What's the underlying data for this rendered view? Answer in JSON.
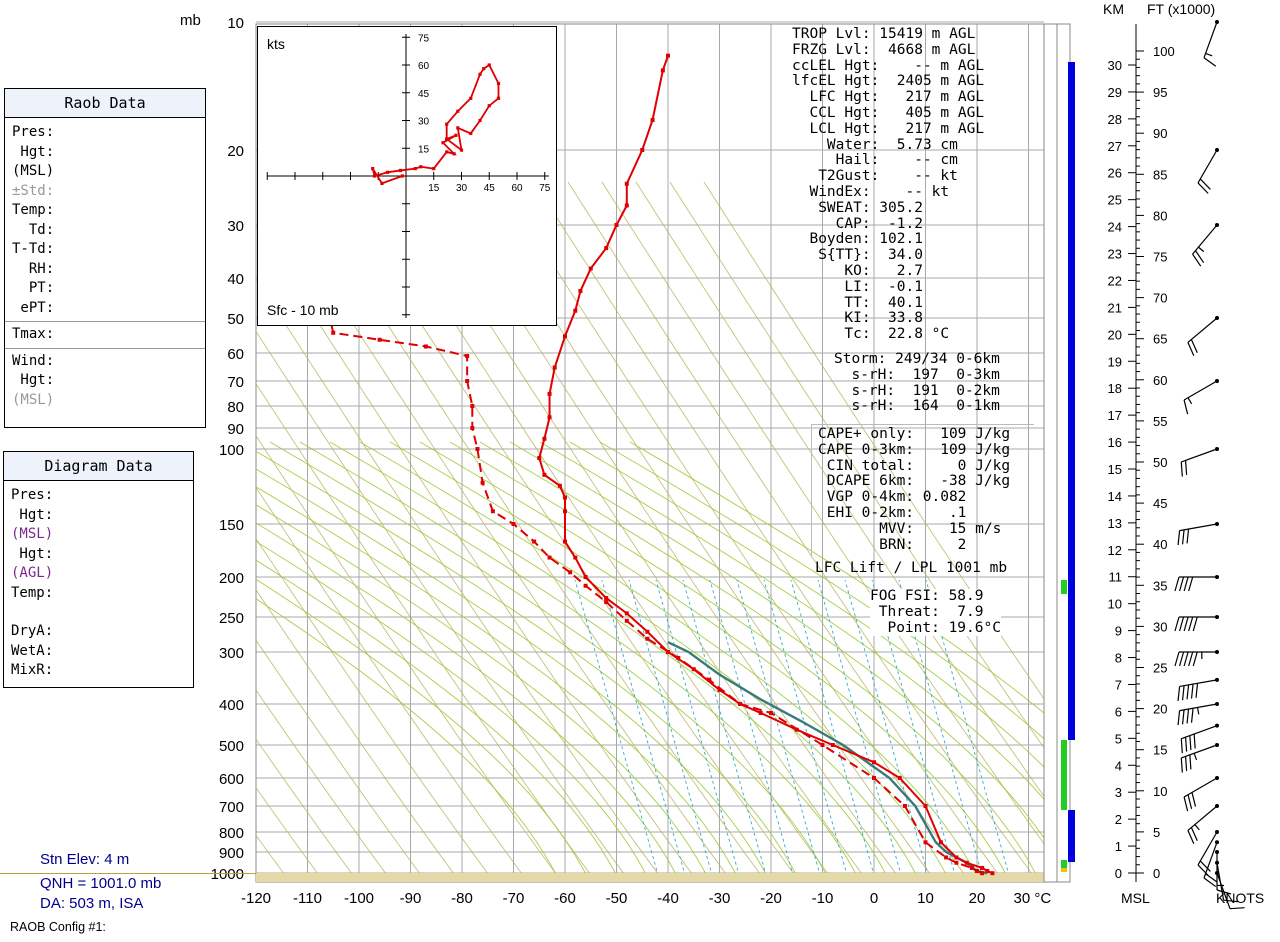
{
  "chart_data": {
    "type": "skew-t",
    "units": {
      "pressure": "mb",
      "temperature": "°C"
    },
    "pressure_ticks": [
      10,
      20,
      30,
      40,
      50,
      60,
      70,
      80,
      90,
      100,
      150,
      200,
      250,
      300,
      400,
      500,
      600,
      700,
      800,
      900,
      1000
    ],
    "temp_ticks": [
      -120,
      -110,
      -100,
      -90,
      -80,
      -70,
      -60,
      -50,
      -40,
      -30,
      -20,
      -10,
      0,
      10,
      20,
      30
    ],
    "temp_unit_label": "30 °C",
    "mb_label": "mb",
    "temperature_profile": [
      [
        23,
        1001
      ],
      [
        22,
        990
      ],
      [
        21,
        975
      ],
      [
        18,
        950
      ],
      [
        16,
        925
      ],
      [
        13,
        850
      ],
      [
        10,
        700
      ],
      [
        5,
        600
      ],
      [
        0,
        550
      ],
      [
        -8,
        500
      ],
      [
        -15,
        460
      ],
      [
        -22,
        420
      ],
      [
        -26,
        400
      ],
      [
        -30,
        370
      ],
      [
        -35,
        330
      ],
      [
        -40,
        300
      ],
      [
        -44,
        270
      ],
      [
        -48,
        245
      ],
      [
        -52,
        225
      ],
      [
        -56,
        200
      ],
      [
        -58,
        180
      ],
      [
        -60,
        165
      ],
      [
        -60,
        140
      ],
      [
        -60,
        130
      ],
      [
        -61,
        122
      ],
      [
        -64,
        115
      ],
      [
        -65,
        105
      ],
      [
        -64,
        95
      ],
      [
        -63,
        85
      ],
      [
        -63,
        75
      ],
      [
        -62,
        65
      ],
      [
        -60,
        55
      ],
      [
        -58,
        48
      ],
      [
        -57,
        43
      ],
      [
        -55,
        38
      ],
      [
        -52,
        34
      ],
      [
        -50,
        30
      ],
      [
        -48,
        27
      ],
      [
        -48,
        24
      ],
      [
        -45,
        20
      ],
      [
        -43,
        17
      ],
      [
        -41,
        13
      ],
      [
        -40,
        12
      ]
    ],
    "dewpoint_profile": [
      [
        21,
        1001
      ],
      [
        20,
        990
      ],
      [
        19,
        975
      ],
      [
        16,
        950
      ],
      [
        14,
        925
      ],
      [
        10,
        850
      ],
      [
        6,
        700
      ],
      [
        0,
        600
      ],
      [
        -10,
        500
      ],
      [
        -20,
        420
      ],
      [
        -26,
        400
      ],
      [
        -32,
        350
      ],
      [
        -38,
        310
      ],
      [
        -44,
        280
      ],
      [
        -48,
        255
      ],
      [
        -52,
        230
      ],
      [
        -56,
        210
      ],
      [
        -59,
        195
      ],
      [
        -63,
        180
      ],
      [
        -66,
        165
      ],
      [
        -70,
        150
      ],
      [
        -74,
        140
      ],
      [
        -76,
        120
      ],
      [
        -77,
        100
      ],
      [
        -78,
        90
      ],
      [
        -78,
        80
      ],
      [
        -79,
        70
      ],
      [
        -79,
        61
      ],
      [
        -87,
        58
      ],
      [
        -96,
        56
      ],
      [
        -105,
        54
      ],
      [
        -106,
        48
      ],
      [
        -110,
        45
      ]
    ],
    "parcel_profile": [
      [
        22,
        1001
      ],
      [
        20,
        990
      ],
      [
        18,
        950
      ],
      [
        14,
        900
      ],
      [
        12,
        850
      ],
      [
        8,
        700
      ],
      [
        3,
        600
      ],
      [
        -6,
        500
      ],
      [
        -14,
        440
      ],
      [
        -22,
        390
      ],
      [
        -30,
        340
      ],
      [
        -36,
        300
      ],
      [
        -40,
        285
      ]
    ],
    "hodograph": {
      "unit_label": "kts",
      "layer_label": "Sfc - 10 mb",
      "tick_labels": [
        "15",
        "30",
        "45",
        "60",
        "75"
      ],
      "points": [
        [
          -2,
          0
        ],
        [
          -13,
          -4
        ],
        [
          -18,
          4
        ],
        [
          -17,
          0
        ],
        [
          -10,
          2
        ],
        [
          -3,
          3
        ],
        [
          5,
          4
        ],
        [
          8,
          5
        ],
        [
          15,
          4
        ],
        [
          22,
          13
        ],
        [
          26,
          12
        ],
        [
          20,
          18
        ],
        [
          27,
          22
        ],
        [
          22,
          20
        ],
        [
          30,
          14
        ],
        [
          28,
          26
        ],
        [
          35,
          23
        ],
        [
          40,
          30
        ],
        [
          45,
          38
        ],
        [
          50,
          42
        ],
        [
          50,
          50
        ],
        [
          45,
          60
        ],
        [
          42,
          58
        ],
        [
          40,
          55
        ],
        [
          35,
          42
        ],
        [
          28,
          35
        ],
        [
          22,
          28
        ],
        [
          22,
          20
        ]
      ]
    },
    "wind_barbs_knots": [
      [
        1000,
        160,
        10
      ],
      [
        950,
        170,
        12
      ],
      [
        900,
        180,
        15
      ],
      [
        850,
        200,
        20
      ],
      [
        800,
        210,
        22
      ],
      [
        700,
        230,
        25
      ],
      [
        600,
        240,
        30
      ],
      [
        500,
        250,
        35
      ],
      [
        450,
        250,
        40
      ],
      [
        400,
        260,
        45
      ],
      [
        350,
        260,
        50
      ],
      [
        300,
        270,
        55
      ],
      [
        250,
        270,
        50
      ],
      [
        200,
        270,
        40
      ],
      [
        150,
        260,
        30
      ],
      [
        100,
        250,
        20
      ],
      [
        70,
        240,
        15
      ],
      [
        50,
        230,
        20
      ],
      [
        30,
        220,
        25
      ],
      [
        20,
        210,
        20
      ],
      [
        10,
        200,
        15
      ]
    ],
    "height_km_ticks": [
      "0",
      "1",
      "2",
      "3",
      "4",
      "5",
      "6",
      "7",
      "8",
      "9",
      "10",
      "11",
      "12",
      "13",
      "14",
      "15",
      "16",
      "17",
      "18",
      "19",
      "20",
      "21",
      "22",
      "23",
      "24",
      "25",
      "26",
      "27",
      "28",
      "29",
      "30"
    ],
    "height_ft_ticks": [
      "0",
      "5",
      "10",
      "15",
      "20",
      "25",
      "30",
      "35",
      "40",
      "45",
      "50",
      "55",
      "60",
      "65",
      "70",
      "75",
      "80",
      "85",
      "90",
      "95",
      "100"
    ],
    "km_label": "KM",
    "ft_label": "FT (x1000)",
    "msl_label": "MSL",
    "knots_label": "KNOTS"
  },
  "raob_panel": {
    "title": "Raob Data",
    "rows": [
      "Pres:",
      " Hgt:",
      "(MSL)",
      "±Std:",
      "Temp:",
      "  Td:",
      "T-Td:",
      "  RH:",
      "  PT:",
      " ePT:"
    ],
    "tmax": "Tmax:",
    "wind_rows": [
      "Wind:",
      " Hgt:",
      "(MSL)"
    ]
  },
  "diagram_panel": {
    "title": "Diagram Data",
    "rows": [
      "Pres:",
      " Hgt:",
      "(MSL)",
      " Hgt:",
      "(AGL)",
      "Temp:"
    ],
    "rows2": [
      "DryA:",
      "WetA:",
      "MixR:"
    ]
  },
  "station": {
    "elev": "Stn Elev: 4 m",
    "qnh": "QNH = 1001.0 mb",
    "da": "DA: 503 m, ISA",
    "config": "RAOB Config #1:"
  },
  "indices": {
    "block1": [
      "TROP Lvl: 15419 m AGL",
      "FRZG Lvl:  4668 m AGL",
      "ccLEL Hgt:    -- m AGL",
      "lfcEL Hgt:  2405 m AGL",
      "  LFC Hgt:   217 m AGL",
      "  CCL Hgt:   405 m AGL",
      "  LCL Hgt:   217 m AGL",
      "    Water:  5.73 cm",
      "     Hail:    -- cm",
      "   T2Gust:    -- kt",
      "  WindEx:    -- kt",
      "   SWEAT: 305.2",
      "     CAP:  -1.2",
      "  Boyden: 102.1",
      "   S{TT}:  34.0",
      "      KO:   2.7",
      "      LI:  -0.1",
      "      TT:  40.1",
      "      KI:  33.8",
      "      Tc:  22.8 °C"
    ],
    "block2": [
      "Storm: 249/34 0-6km",
      "  s-rH:  197  0-3km",
      "  s-rH:  191  0-2km",
      "  s-rH:  164  0-1km"
    ],
    "block3": [
      "CAPE+ only:   109 J/kg",
      "CAPE 0-3km:   109 J/kg",
      " CIN total:     0 J/kg",
      " DCAPE 6km:   -38 J/kg",
      " VGP 0-4km: 0.082",
      " EHI 0-2km:    .1",
      "       MVV:    15 m/s",
      "       BRN:     2"
    ],
    "lift": "LFC Lift / LPL 1001 mb",
    "block4": [
      "FOG FSI: 58.9",
      " Threat:  7.9",
      "  Point: 19.6°C"
    ]
  },
  "colors": {
    "temperature": "#e00000",
    "parcel": "#3a7a7a",
    "moist_adiabat": "#99cc33",
    "dry_adiabat": "#b7b05a",
    "mixing_ratio": "#33aacc",
    "cloud_bar": "#0000dd",
    "green_bar": "#22cc22",
    "ground": "#e6d9a8"
  }
}
